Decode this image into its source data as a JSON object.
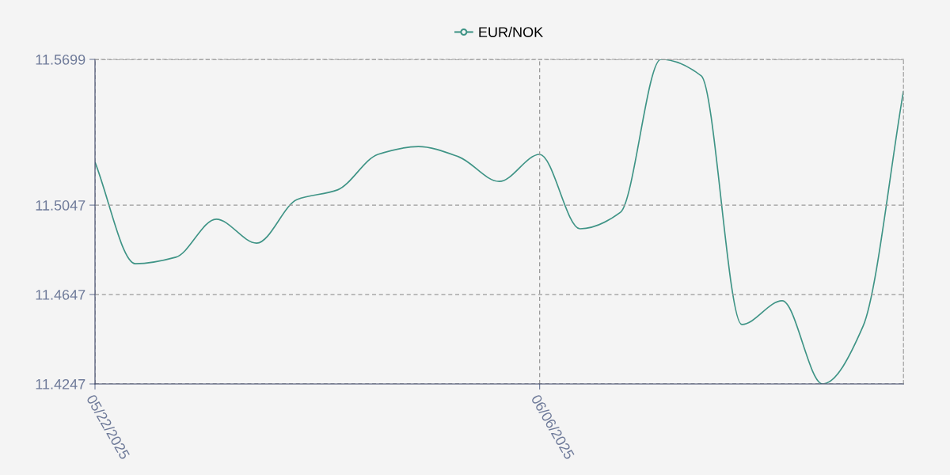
{
  "chart_data": {
    "type": "line",
    "categories": [
      "05/22/2025",
      null,
      null,
      null,
      null,
      null,
      null,
      null,
      null,
      null,
      null,
      "06/06/2025",
      null,
      null,
      null,
      null,
      null,
      null,
      null,
      null,
      null
    ],
    "series": [
      {
        "name": "EUR/NOK",
        "color": "#3f9486",
        "values": [
          11.5239,
          11.4785,
          11.4814,
          11.4984,
          11.4877,
          11.5072,
          11.5115,
          11.5274,
          11.5309,
          11.5263,
          11.5153,
          11.5274,
          11.4941,
          11.5015,
          11.5699,
          11.5625,
          11.4513,
          11.4619,
          11.4247,
          11.4505,
          11.5557
        ]
      }
    ],
    "ylim": [
      11.4247,
      11.5699
    ],
    "yticks": [
      11.4247,
      11.4647,
      11.5047,
      11.5699
    ],
    "grid": true,
    "legend": "top",
    "line_style": "solid"
  }
}
